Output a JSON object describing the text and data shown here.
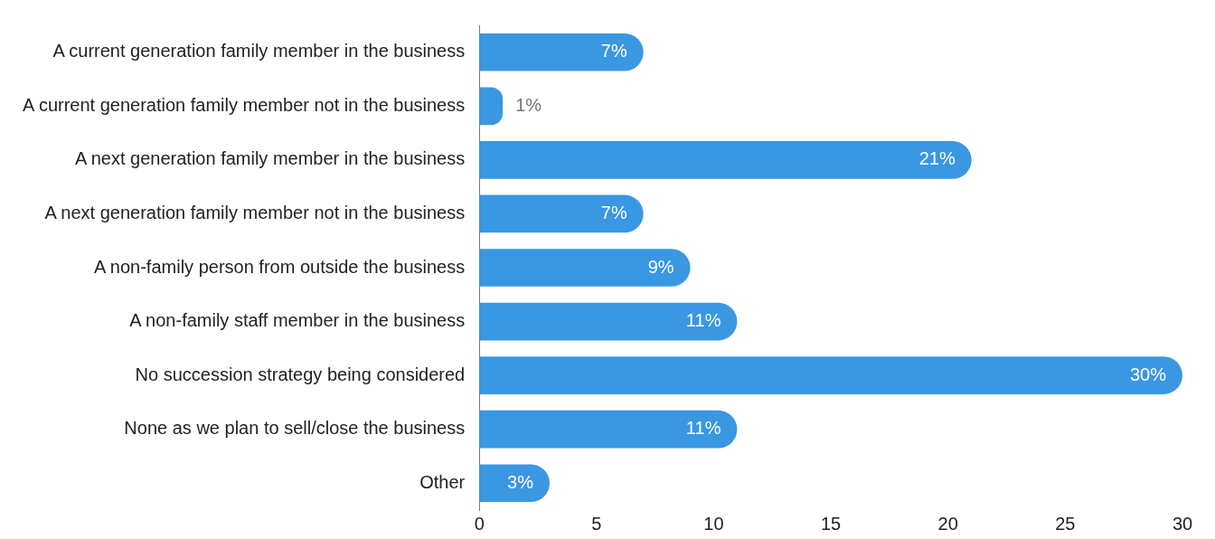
{
  "chart_data": {
    "type": "bar",
    "orientation": "horizontal",
    "categories": [
      "A current generation family member in the business",
      "A current generation family member not in the business",
      "A next generation family member in the business",
      "A next generation family member not in the business",
      "A non-family person from outside the business",
      "A non-family staff member in the business",
      "No succession strategy being considered",
      "None as we plan to sell/close the business",
      "Other"
    ],
    "values": [
      7,
      1,
      21,
      7,
      9,
      11,
      30,
      11,
      3
    ],
    "value_labels": [
      "7%",
      "1%",
      "21%",
      "7%",
      "9%",
      "11%",
      "30%",
      "11%",
      "3%"
    ],
    "color": "#3a97e2",
    "xlim": [
      0,
      30
    ],
    "xticks": [
      0,
      5,
      10,
      15,
      20,
      25,
      30
    ],
    "grid": false,
    "legend": false
  }
}
